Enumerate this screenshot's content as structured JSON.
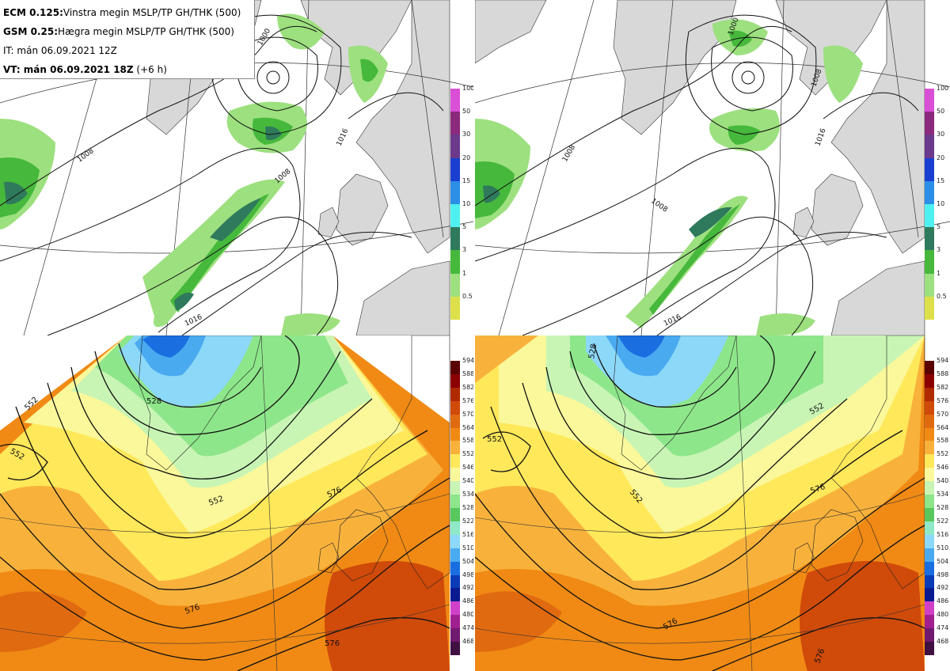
{
  "header": {
    "line1_bold": "ECM 0.125:",
    "line1_rest": "Vinstra megin MSLP/TP GH/THK (500)",
    "line2_bold": "GSM 0.25:",
    "line2_rest": "Hægra megin MSLP/TP GH/THK (500)",
    "line3": "IT: mán 06.09.2021 12Z",
    "line4_bold": "VT: mán 06.09.2021 18Z",
    "line4_rest": " (+6 h)"
  },
  "precip_colorbar": {
    "labels": [
      "100",
      "50",
      "30",
      "20",
      "15",
      "10",
      "5",
      "3",
      "1",
      "0.5"
    ],
    "colors": [
      "#d94fd6",
      "#8b2a7c",
      "#6b3a8c",
      "#1a3fd0",
      "#2c8ee6",
      "#4ff0f0",
      "#2f7a5c",
      "#46b83c",
      "#9de07f",
      "#dde04a"
    ]
  },
  "thk_colorbar": {
    "labels": [
      "594",
      "588",
      "582",
      "576",
      "570",
      "564",
      "558",
      "552",
      "546",
      "540",
      "534",
      "528",
      "522",
      "516",
      "510",
      "504",
      "498",
      "492",
      "486",
      "480",
      "474",
      "468"
    ],
    "colors": [
      "#5a0000",
      "#8b0000",
      "#b02a00",
      "#d04a0a",
      "#e06a10",
      "#f08a14",
      "#f8b23c",
      "#ffe85a",
      "#faf89a",
      "#c8f5b4",
      "#8ee68a",
      "#58c85c",
      "#8fe8c8",
      "#8cd8f8",
      "#4aaaf0",
      "#1a6ee0",
      "#0a3cb8",
      "#0a1a90",
      "#d040c8",
      "#a02090",
      "#701a70",
      "#401040"
    ]
  },
  "contour_labels": {
    "top_left": [
      "1008",
      "1016",
      "1008",
      "1016",
      "1000"
    ],
    "top_right": [
      "1008",
      "1016",
      "1008",
      "1016",
      "1008",
      "1000"
    ],
    "bottom_left": [
      "528",
      "552",
      "552",
      "552",
      "576",
      "576",
      "576"
    ],
    "bottom_right": [
      "528",
      "552",
      "552",
      "552",
      "576",
      "576",
      "576"
    ]
  },
  "colors": {
    "land": "#d8d8d8",
    "sea": "#ffffff",
    "contour": "#111111"
  }
}
